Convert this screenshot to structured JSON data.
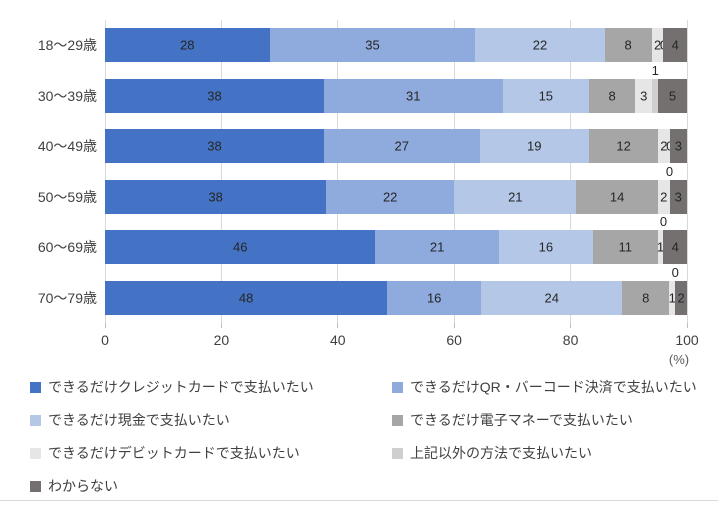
{
  "chart_data": {
    "type": "bar",
    "orientation": "horizontal",
    "stacked": true,
    "normalized_100pct": true,
    "title": "",
    "xlabel": "",
    "ylabel": "",
    "x_unit": "(%)",
    "xlim": [
      0,
      100
    ],
    "x_ticks": [
      0,
      20,
      40,
      60,
      80,
      100
    ],
    "grid": true,
    "legend_position": "bottom-two-columns",
    "categories": [
      "18〜29歳",
      "30〜39歳",
      "40〜49歳",
      "50〜59歳",
      "60〜69歳",
      "70〜79歳"
    ],
    "series": [
      {
        "key": "credit-card",
        "name": "できるだけクレジットカードで支払いたい",
        "color": "#4472C4",
        "values": [
          28,
          38,
          38,
          38,
          46,
          48
        ]
      },
      {
        "key": "qr-barcode",
        "name": "できるだけQR・バーコード決済で支払いたい",
        "color": "#8FAADC",
        "values": [
          35,
          31,
          27,
          22,
          21,
          16
        ]
      },
      {
        "key": "cash",
        "name": "できるだけ現金で支払いたい",
        "color": "#B4C7E7",
        "values": [
          22,
          15,
          19,
          21,
          16,
          24
        ]
      },
      {
        "key": "e-money",
        "name": "できるだけ電子マネーで支払いたい",
        "color": "#A6A6A6",
        "values": [
          8,
          8,
          12,
          14,
          11,
          8
        ]
      },
      {
        "key": "debit-card",
        "name": "できるだけデビットカードで支払いたい",
        "color": "#E7E6E6",
        "values": [
          2,
          3,
          2,
          2,
          1,
          1
        ]
      },
      {
        "key": "other-method",
        "name": "上記以外の方法で支払いたい",
        "color": "#D0CECE",
        "values": [
          0,
          1,
          0,
          0,
          0,
          0
        ],
        "label_above": [
          false,
          true,
          false,
          true,
          true,
          true
        ]
      },
      {
        "key": "dont-know",
        "name": "わからない",
        "color": "#757070",
        "values": [
          4,
          5,
          3,
          3,
          4,
          2
        ]
      }
    ]
  }
}
